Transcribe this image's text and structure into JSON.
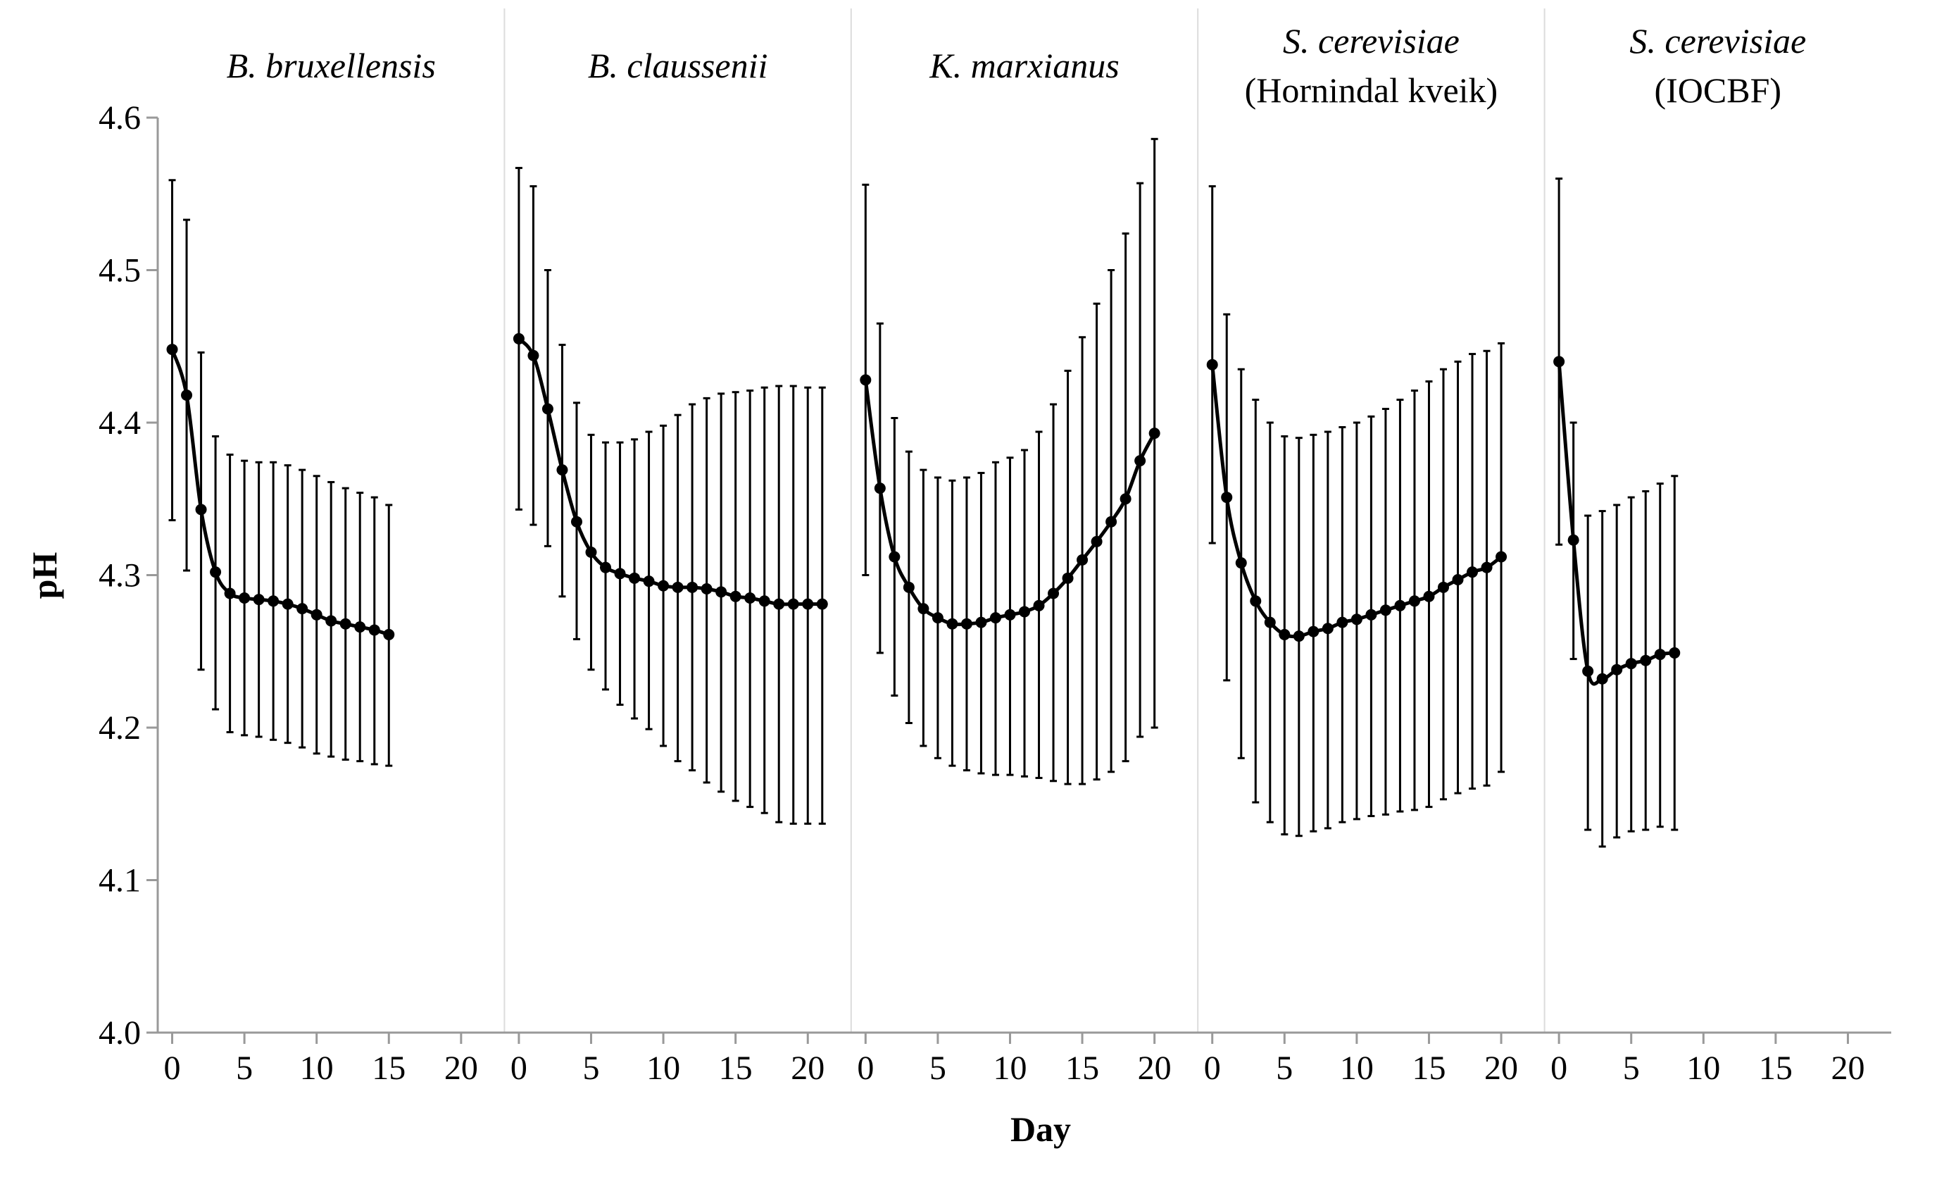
{
  "chart_data": {
    "type": "line",
    "ylabel": "pH",
    "xlabel": "Day",
    "ylim": [
      4.0,
      4.6
    ],
    "yticks": [
      4.0,
      4.1,
      4.2,
      4.3,
      4.4,
      4.5,
      4.6
    ],
    "ytick_labels": [
      "4.0",
      "4.1",
      "4.2",
      "4.3",
      "4.4",
      "4.5",
      "4.6"
    ],
    "xlim": [
      -1,
      23
    ],
    "xticks": [
      0,
      5,
      10,
      15,
      20
    ],
    "xtick_labels": [
      "0",
      "5",
      "10",
      "15",
      "20"
    ],
    "grid": false,
    "error_bars": true,
    "panels": [
      {
        "title": "B. bruxellensis",
        "subtitle": "",
        "days": [
          0,
          1,
          2,
          3,
          4,
          5,
          6,
          7,
          8,
          9,
          10,
          11,
          12,
          13,
          14,
          15
        ],
        "values": [
          4.448,
          4.418,
          4.343,
          4.302,
          4.288,
          4.285,
          4.284,
          4.283,
          4.281,
          4.278,
          4.274,
          4.27,
          4.268,
          4.266,
          4.264,
          4.261
        ],
        "err_upper": [
          4.559,
          4.533,
          4.446,
          4.391,
          4.379,
          4.375,
          4.374,
          4.374,
          4.372,
          4.369,
          4.365,
          4.361,
          4.357,
          4.354,
          4.351,
          4.346
        ],
        "err_lower": [
          4.336,
          4.303,
          4.238,
          4.212,
          4.197,
          4.195,
          4.194,
          4.192,
          4.19,
          4.187,
          4.183,
          4.181,
          4.179,
          4.178,
          4.176,
          4.175
        ]
      },
      {
        "title": "B. claussenii",
        "subtitle": "",
        "days": [
          0,
          1,
          2,
          3,
          4,
          5,
          6,
          7,
          8,
          9,
          10,
          11,
          12,
          13,
          14,
          15,
          16,
          17,
          18,
          19,
          20,
          21
        ],
        "values": [
          4.455,
          4.444,
          4.409,
          4.369,
          4.335,
          4.315,
          4.305,
          4.301,
          4.298,
          4.296,
          4.293,
          4.292,
          4.292,
          4.291,
          4.289,
          4.286,
          4.285,
          4.283,
          4.281,
          4.281,
          4.281,
          4.281
        ],
        "err_upper": [
          4.567,
          4.555,
          4.5,
          4.451,
          4.413,
          4.392,
          4.387,
          4.387,
          4.389,
          4.394,
          4.398,
          4.405,
          4.412,
          4.416,
          4.419,
          4.42,
          4.421,
          4.423,
          4.424,
          4.424,
          4.423,
          4.423
        ],
        "err_lower": [
          4.343,
          4.333,
          4.319,
          4.286,
          4.258,
          4.238,
          4.225,
          4.215,
          4.206,
          4.199,
          4.188,
          4.178,
          4.172,
          4.164,
          4.158,
          4.152,
          4.148,
          4.144,
          4.138,
          4.137,
          4.137,
          4.137
        ]
      },
      {
        "title": "K. marxianus",
        "subtitle": "",
        "days": [
          0,
          1,
          2,
          3,
          4,
          5,
          6,
          7,
          8,
          9,
          10,
          11,
          12,
          13,
          14,
          15,
          16,
          17,
          18,
          19,
          20
        ],
        "values": [
          4.428,
          4.357,
          4.312,
          4.292,
          4.278,
          4.272,
          4.268,
          4.268,
          4.269,
          4.272,
          4.274,
          4.276,
          4.28,
          4.288,
          4.298,
          4.31,
          4.322,
          4.335,
          4.35,
          4.375,
          4.393
        ],
        "err_upper": [
          4.556,
          4.465,
          4.403,
          4.381,
          4.369,
          4.364,
          4.362,
          4.364,
          4.367,
          4.374,
          4.377,
          4.382,
          4.394,
          4.412,
          4.434,
          4.456,
          4.478,
          4.5,
          4.524,
          4.557,
          4.586
        ],
        "err_lower": [
          4.3,
          4.249,
          4.221,
          4.203,
          4.188,
          4.18,
          4.175,
          4.172,
          4.17,
          4.169,
          4.169,
          4.168,
          4.167,
          4.165,
          4.163,
          4.163,
          4.166,
          4.171,
          4.178,
          4.194,
          4.2
        ]
      },
      {
        "title": "S. cerevisiae",
        "subtitle": "(Hornindal kveik)",
        "days": [
          0,
          1,
          2,
          3,
          4,
          5,
          6,
          7,
          8,
          9,
          10,
          11,
          12,
          13,
          14,
          15,
          16,
          17,
          18,
          19,
          20
        ],
        "values": [
          4.438,
          4.351,
          4.308,
          4.283,
          4.269,
          4.261,
          4.26,
          4.263,
          4.265,
          4.269,
          4.271,
          4.274,
          4.277,
          4.28,
          4.283,
          4.286,
          4.292,
          4.297,
          4.302,
          4.305,
          4.312
        ],
        "err_upper": [
          4.555,
          4.471,
          4.435,
          4.415,
          4.4,
          4.391,
          4.39,
          4.392,
          4.394,
          4.397,
          4.4,
          4.404,
          4.409,
          4.415,
          4.421,
          4.427,
          4.435,
          4.44,
          4.445,
          4.447,
          4.452
        ],
        "err_lower": [
          4.321,
          4.231,
          4.18,
          4.151,
          4.138,
          4.13,
          4.129,
          4.132,
          4.134,
          4.138,
          4.14,
          4.142,
          4.143,
          4.145,
          4.146,
          4.148,
          4.153,
          4.157,
          4.16,
          4.162,
          4.171
        ]
      },
      {
        "title": "S. cerevisiae",
        "subtitle": "(IOCBF)",
        "days": [
          0,
          1,
          2,
          3,
          4,
          5,
          6,
          7,
          8
        ],
        "values": [
          4.44,
          4.323,
          4.237,
          4.232,
          4.238,
          4.242,
          4.244,
          4.248,
          4.249
        ],
        "err_upper": [
          4.56,
          4.4,
          4.339,
          4.342,
          4.346,
          4.351,
          4.355,
          4.36,
          4.365
        ],
        "err_lower": [
          4.32,
          4.245,
          4.133,
          4.122,
          4.128,
          4.132,
          4.133,
          4.135,
          4.133
        ]
      }
    ]
  }
}
